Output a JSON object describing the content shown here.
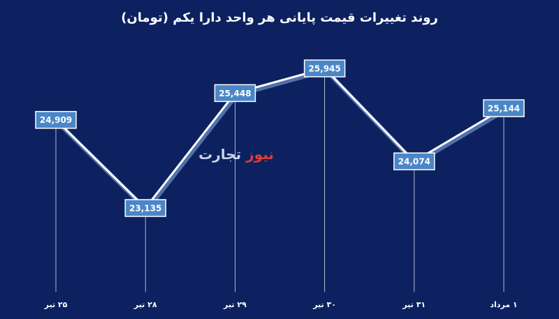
{
  "chart_data": {
    "type": "line",
    "title": "روند تغییرات قیمت پایانی هر واحد دارا یکم (تومان)",
    "categories": [
      "۲۵ تیر",
      "۲۸ تیر",
      "۲۹ تیر",
      "۳۰ تیر",
      "۳۱ تیر",
      "۱ مرداد"
    ],
    "values": [
      24909,
      23135,
      25448,
      25945,
      24074,
      25144
    ],
    "value_labels": [
      "24,909",
      "23,135",
      "25,448",
      "25,945",
      "24,074",
      "25,144"
    ],
    "color": "#ffffff",
    "label_color": "#4a86c8",
    "watermark": [
      "تجارت",
      "نیوز"
    ]
  }
}
